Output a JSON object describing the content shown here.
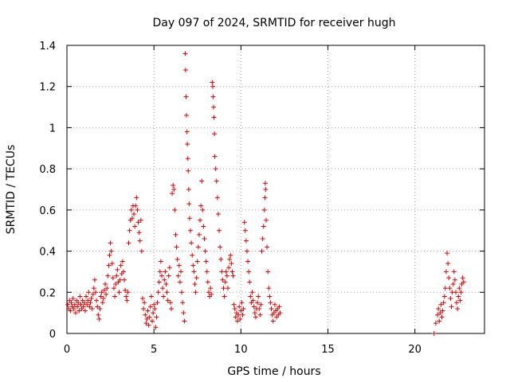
{
  "chart_data": {
    "type": "scatter",
    "title": "Day 097 of 2024, SRMTID for receiver hugh",
    "xlabel": "GPS time / hours",
    "ylabel": "SRMTID / TECUs",
    "xlim": [
      0,
      24
    ],
    "ylim": [
      0,
      1.4
    ],
    "x_ticks": [
      0,
      5,
      10,
      15,
      20
    ],
    "x_tick_labels": [
      "0",
      "5",
      "10",
      "15",
      "20"
    ],
    "y_ticks": [
      0,
      0.2,
      0.4,
      0.6,
      0.8,
      1,
      1.2,
      1.4
    ],
    "y_tick_labels": [
      "0",
      "0.2",
      "0.4",
      "0.6",
      "0.8",
      "1",
      "1.2",
      "1.4"
    ],
    "grid": true,
    "marker": "+",
    "marker_color": "#e00000",
    "series": [
      {
        "name": "SRMTID",
        "points": [
          [
            0.05,
            0.14
          ],
          [
            0.1,
            0.12
          ],
          [
            0.15,
            0.16
          ],
          [
            0.2,
            0.11
          ],
          [
            0.25,
            0.15
          ],
          [
            0.3,
            0.13
          ],
          [
            0.35,
            0.17
          ],
          [
            0.4,
            0.12
          ],
          [
            0.45,
            0.14
          ],
          [
            0.5,
            0.1
          ],
          [
            0.55,
            0.16
          ],
          [
            0.6,
            0.13
          ],
          [
            0.65,
            0.15
          ],
          [
            0.7,
            0.11
          ],
          [
            0.75,
            0.18
          ],
          [
            0.8,
            0.14
          ],
          [
            0.85,
            0.12
          ],
          [
            0.9,
            0.16
          ],
          [
            0.95,
            0.13
          ],
          [
            1.0,
            0.15
          ],
          [
            1.05,
            0.11
          ],
          [
            1.1,
            0.18
          ],
          [
            1.15,
            0.14
          ],
          [
            1.2,
            0.16
          ],
          [
            1.25,
            0.2
          ],
          [
            1.3,
            0.13
          ],
          [
            1.35,
            0.15
          ],
          [
            1.4,
            0.17
          ],
          [
            1.45,
            0.12
          ],
          [
            1.5,
            0.19
          ],
          [
            1.55,
            0.22
          ],
          [
            1.6,
            0.26
          ],
          [
            1.65,
            0.2
          ],
          [
            1.7,
            0.16
          ],
          [
            1.75,
            0.13
          ],
          [
            1.8,
            0.09
          ],
          [
            1.85,
            0.07
          ],
          [
            1.9,
            0.12
          ],
          [
            1.95,
            0.18
          ],
          [
            2.0,
            0.2
          ],
          [
            2.05,
            0.15
          ],
          [
            2.1,
            0.17
          ],
          [
            2.15,
            0.21
          ],
          [
            2.2,
            0.24
          ],
          [
            2.25,
            0.19
          ],
          [
            2.3,
            0.22
          ],
          [
            2.35,
            0.28
          ],
          [
            2.4,
            0.33
          ],
          [
            2.45,
            0.38
          ],
          [
            2.5,
            0.44
          ],
          [
            2.55,
            0.4
          ],
          [
            2.6,
            0.34
          ],
          [
            2.65,
            0.27
          ],
          [
            2.7,
            0.22
          ],
          [
            2.75,
            0.18
          ],
          [
            2.8,
            0.24
          ],
          [
            2.85,
            0.28
          ],
          [
            2.9,
            0.31
          ],
          [
            2.95,
            0.25
          ],
          [
            3.0,
            0.2
          ],
          [
            3.05,
            0.26
          ],
          [
            3.1,
            0.33
          ],
          [
            3.15,
            0.29
          ],
          [
            3.2,
            0.35
          ],
          [
            3.25,
            0.3
          ],
          [
            3.3,
            0.26
          ],
          [
            3.35,
            0.21
          ],
          [
            3.4,
            0.18
          ],
          [
            3.45,
            0.16
          ],
          [
            3.5,
            0.2
          ],
          [
            3.55,
            0.44
          ],
          [
            3.6,
            0.5
          ],
          [
            3.65,
            0.55
          ],
          [
            3.7,
            0.6
          ],
          [
            3.75,
            0.56
          ],
          [
            3.8,
            0.62
          ],
          [
            3.85,
            0.58
          ],
          [
            3.9,
            0.52
          ],
          [
            3.95,
            0.62
          ],
          [
            4.0,
            0.66
          ],
          [
            4.05,
            0.6
          ],
          [
            4.1,
            0.54
          ],
          [
            4.15,
            0.49
          ],
          [
            4.2,
            0.45
          ],
          [
            4.25,
            0.55
          ],
          [
            4.3,
            0.4
          ],
          [
            4.35,
            0.17
          ],
          [
            4.4,
            0.12
          ],
          [
            4.45,
            0.15
          ],
          [
            4.5,
            0.09
          ],
          [
            4.55,
            0.05
          ],
          [
            4.6,
            0.07
          ],
          [
            4.65,
            0.11
          ],
          [
            4.7,
            0.04
          ],
          [
            4.75,
            0.08
          ],
          [
            4.8,
            0.13
          ],
          [
            4.85,
            0.18
          ],
          [
            4.9,
            0.06
          ],
          [
            4.95,
            0.1
          ],
          [
            5.0,
            0.14
          ],
          [
            5.05,
            0.12
          ],
          [
            5.1,
            0.03
          ],
          [
            5.15,
            0.08
          ],
          [
            5.2,
            0.15
          ],
          [
            5.25,
            0.2
          ],
          [
            5.3,
            0.25
          ],
          [
            5.35,
            0.3
          ],
          [
            5.4,
            0.35
          ],
          [
            5.45,
            0.28
          ],
          [
            5.5,
            0.22
          ],
          [
            5.55,
            0.18
          ],
          [
            5.6,
            0.26
          ],
          [
            5.65,
            0.3
          ],
          [
            5.7,
            0.24
          ],
          [
            5.75,
            0.2
          ],
          [
            5.8,
            0.16
          ],
          [
            5.85,
            0.28
          ],
          [
            5.9,
            0.32
          ],
          [
            5.95,
            0.15
          ],
          [
            6.0,
            0.12
          ],
          [
            6.05,
            0.68
          ],
          [
            6.1,
            0.72
          ],
          [
            6.15,
            0.7
          ],
          [
            6.2,
            0.6
          ],
          [
            6.25,
            0.48
          ],
          [
            6.3,
            0.42
          ],
          [
            6.35,
            0.36
          ],
          [
            6.4,
            0.28
          ],
          [
            6.45,
            0.33
          ],
          [
            6.5,
            0.25
          ],
          [
            6.55,
            0.3
          ],
          [
            6.6,
            0.2
          ],
          [
            6.65,
            0.15
          ],
          [
            6.7,
            0.1
          ],
          [
            6.75,
            0.06
          ],
          [
            6.8,
            1.36
          ],
          [
            6.82,
            1.28
          ],
          [
            6.85,
            1.15
          ],
          [
            6.87,
            1.06
          ],
          [
            6.9,
            0.98
          ],
          [
            6.92,
            0.92
          ],
          [
            6.95,
            0.85
          ],
          [
            6.97,
            0.79
          ],
          [
            7.0,
            0.7
          ],
          [
            7.02,
            0.63
          ],
          [
            7.05,
            0.56
          ],
          [
            7.1,
            0.5
          ],
          [
            7.15,
            0.44
          ],
          [
            7.2,
            0.38
          ],
          [
            7.25,
            0.33
          ],
          [
            7.3,
            0.3
          ],
          [
            7.35,
            0.24
          ],
          [
            7.4,
            0.2
          ],
          [
            7.45,
            0.27
          ],
          [
            7.5,
            0.35
          ],
          [
            7.55,
            0.42
          ],
          [
            7.6,
            0.48
          ],
          [
            7.65,
            0.55
          ],
          [
            7.7,
            0.62
          ],
          [
            7.75,
            0.74
          ],
          [
            7.8,
            0.6
          ],
          [
            7.85,
            0.52
          ],
          [
            7.9,
            0.46
          ],
          [
            7.95,
            0.4
          ],
          [
            8.0,
            0.35
          ],
          [
            8.05,
            0.3
          ],
          [
            8.1,
            0.25
          ],
          [
            8.15,
            0.2
          ],
          [
            8.2,
            0.18
          ],
          [
            8.25,
            0.22
          ],
          [
            8.3,
            0.19
          ],
          [
            8.35,
            1.22
          ],
          [
            8.38,
            1.2
          ],
          [
            8.4,
            1.15
          ],
          [
            8.43,
            1.1
          ],
          [
            8.45,
            1.05
          ],
          [
            8.48,
            0.97
          ],
          [
            8.5,
            0.86
          ],
          [
            8.55,
            0.8
          ],
          [
            8.6,
            0.74
          ],
          [
            8.65,
            0.66
          ],
          [
            8.7,
            0.58
          ],
          [
            8.75,
            0.5
          ],
          [
            8.8,
            0.42
          ],
          [
            8.85,
            0.36
          ],
          [
            8.9,
            0.3
          ],
          [
            8.95,
            0.26
          ],
          [
            9.0,
            0.22
          ],
          [
            9.05,
            0.18
          ],
          [
            9.1,
            0.25
          ],
          [
            9.15,
            0.3
          ],
          [
            9.2,
            0.28
          ],
          [
            9.25,
            0.22
          ],
          [
            9.3,
            0.32
          ],
          [
            9.35,
            0.36
          ],
          [
            9.4,
            0.38
          ],
          [
            9.45,
            0.34
          ],
          [
            9.5,
            0.3
          ],
          [
            9.55,
            0.28
          ],
          [
            9.6,
            0.14
          ],
          [
            9.65,
            0.12
          ],
          [
            9.7,
            0.08
          ],
          [
            9.75,
            0.1
          ],
          [
            9.8,
            0.06
          ],
          [
            9.85,
            0.09
          ],
          [
            9.9,
            0.13
          ],
          [
            9.95,
            0.07
          ],
          [
            10.0,
            0.11
          ],
          [
            10.05,
            0.15
          ],
          [
            10.1,
            0.09
          ],
          [
            10.15,
            0.12
          ],
          [
            10.2,
            0.54
          ],
          [
            10.25,
            0.5
          ],
          [
            10.3,
            0.45
          ],
          [
            10.35,
            0.4
          ],
          [
            10.4,
            0.35
          ],
          [
            10.45,
            0.3
          ],
          [
            10.5,
            0.25
          ],
          [
            10.55,
            0.18
          ],
          [
            10.6,
            0.15
          ],
          [
            10.65,
            0.2
          ],
          [
            10.7,
            0.16
          ],
          [
            10.75,
            0.13
          ],
          [
            10.8,
            0.1
          ],
          [
            10.85,
            0.08
          ],
          [
            10.9,
            0.12
          ],
          [
            10.95,
            0.15
          ],
          [
            11.0,
            0.18
          ],
          [
            11.05,
            0.12
          ],
          [
            11.1,
            0.09
          ],
          [
            11.15,
            0.14
          ],
          [
            11.2,
            0.4
          ],
          [
            11.25,
            0.46
          ],
          [
            11.3,
            0.52
          ],
          [
            11.35,
            0.6
          ],
          [
            11.38,
            0.66
          ],
          [
            11.4,
            0.73
          ],
          [
            11.42,
            0.7
          ],
          [
            11.45,
            0.55
          ],
          [
            11.5,
            0.42
          ],
          [
            11.55,
            0.3
          ],
          [
            11.6,
            0.22
          ],
          [
            11.65,
            0.18
          ],
          [
            11.7,
            0.15
          ],
          [
            11.75,
            0.12
          ],
          [
            11.8,
            0.09
          ],
          [
            11.85,
            0.06
          ],
          [
            11.9,
            0.1
          ],
          [
            11.95,
            0.14
          ],
          [
            12.0,
            0.11
          ],
          [
            12.05,
            0.08
          ],
          [
            12.1,
            0.12
          ],
          [
            12.15,
            0.09
          ],
          [
            12.2,
            0.13
          ],
          [
            12.25,
            0.1
          ],
          [
            21.1,
            0.0
          ],
          [
            21.2,
            0.05
          ],
          [
            21.3,
            0.09
          ],
          [
            21.35,
            0.12
          ],
          [
            21.4,
            0.06
          ],
          [
            21.45,
            0.1
          ],
          [
            21.5,
            0.14
          ],
          [
            21.55,
            0.08
          ],
          [
            21.6,
            0.11
          ],
          [
            21.65,
            0.15
          ],
          [
            21.7,
            0.18
          ],
          [
            21.75,
            0.22
          ],
          [
            21.8,
            0.3
          ],
          [
            21.85,
            0.39
          ],
          [
            21.9,
            0.34
          ],
          [
            21.95,
            0.27
          ],
          [
            22.0,
            0.22
          ],
          [
            22.05,
            0.17
          ],
          [
            22.1,
            0.13
          ],
          [
            22.15,
            0.2
          ],
          [
            22.2,
            0.24
          ],
          [
            22.25,
            0.3
          ],
          [
            22.3,
            0.26
          ],
          [
            22.35,
            0.2
          ],
          [
            22.4,
            0.15
          ],
          [
            22.45,
            0.12
          ],
          [
            22.5,
            0.18
          ],
          [
            22.55,
            0.22
          ],
          [
            22.6,
            0.16
          ],
          [
            22.65,
            0.2
          ],
          [
            22.7,
            0.24
          ],
          [
            22.75,
            0.27
          ],
          [
            22.8,
            0.25
          ]
        ]
      }
    ]
  }
}
